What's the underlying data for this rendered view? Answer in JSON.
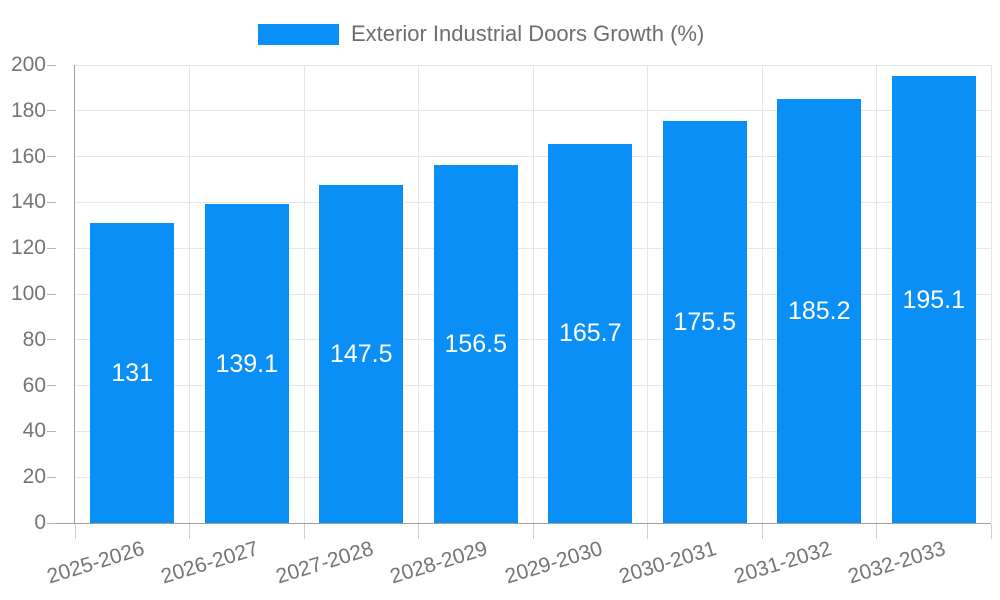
{
  "chart_data": {
    "type": "bar",
    "title": "",
    "legend_position": "top",
    "categories": [
      "2025-2026",
      "2026-2027",
      "2027-2028",
      "2028-2029",
      "2029-2030",
      "2030-2031",
      "2031-2032",
      "2032-2033"
    ],
    "series": [
      {
        "name": "Exterior Industrial Doors Growth (%)",
        "values": [
          131,
          139.1,
          147.5,
          156.5,
          165.7,
          175.5,
          185.2,
          195.1
        ],
        "value_labels": [
          "131",
          "139.1",
          "147.5",
          "156.5",
          "165.7",
          "175.5",
          "185.2",
          "195.1"
        ]
      }
    ],
    "xlabel": "",
    "ylabel": "",
    "ylim": [
      0,
      200
    ],
    "yticks": [
      0,
      20,
      40,
      60,
      80,
      100,
      120,
      140,
      160,
      180,
      200
    ],
    "grid": true
  },
  "colors": {
    "background": "#ffffff",
    "bar": "#0a8ff7",
    "grid_line": "#e6e6e6",
    "axis_line": "#9e9e9e",
    "y_tick": "#b5b5b5",
    "x_tick": "#cfcfcf",
    "axis_text": "#757575",
    "legend_text": "#6e6e6e",
    "value_label": "#ffffff"
  }
}
